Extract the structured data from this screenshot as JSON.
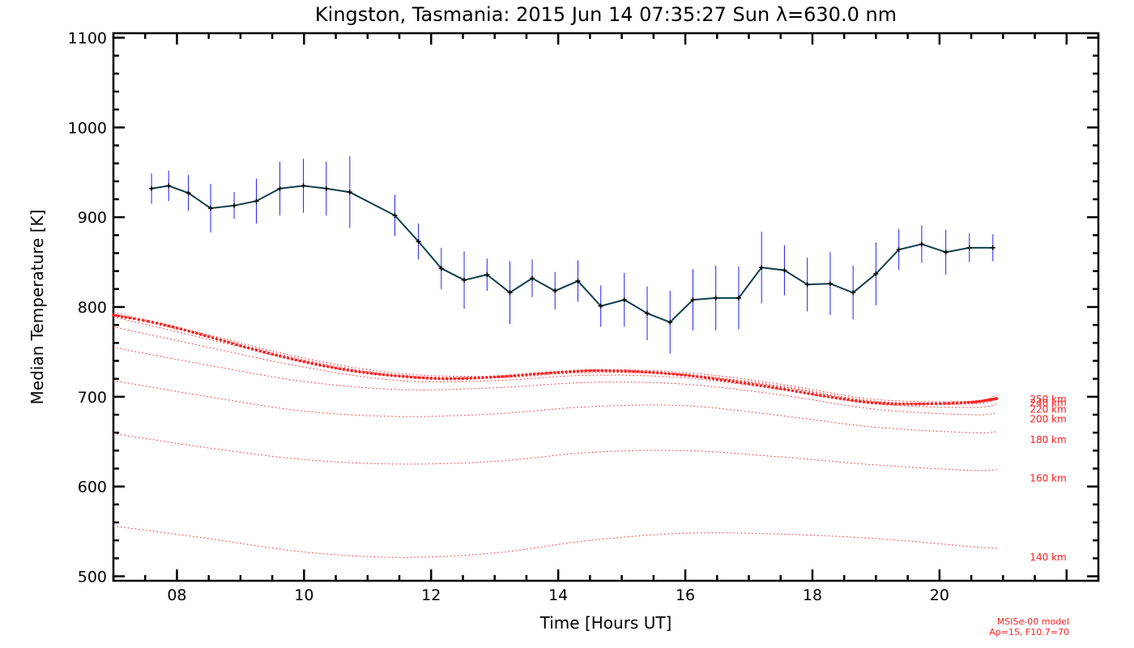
{
  "title": "Kingston, Tasmania: 2015 Jun 14 07:35:27 Sun λ=630.0 nm",
  "xlabel": "Time [Hours UT]",
  "ylabel": "Median Temperature [K]",
  "model_note_line1": "MSISe-00 model",
  "model_note_line2": "Ap=15, F10.7=70",
  "colors": {
    "measurement_line": "#0f3d4d",
    "error_bars": "#2020ff",
    "model": "#ff2020",
    "axes": "#000000"
  },
  "chart_data": {
    "type": "line",
    "title": "Kingston, Tasmania: 2015 Jun 14 07:35:27 Sun λ=630.0 nm",
    "xlabel": "Time [Hours UT]",
    "ylabel": "Median Temperature [K]",
    "xlim": [
      7,
      22.5
    ],
    "ylim": [
      495,
      1105
    ],
    "xticks": [
      8,
      10,
      12,
      14,
      16,
      18,
      20
    ],
    "xtick_labels": [
      "08",
      "10",
      "12",
      "14",
      "16",
      "18",
      "20"
    ],
    "yticks": [
      500,
      600,
      700,
      800,
      900,
      1000,
      1100
    ],
    "ytick_labels": [
      "500",
      "600",
      "700",
      "800",
      "900",
      "1000",
      "1100"
    ],
    "grid": false,
    "series": [
      {
        "kind": "measurement",
        "x": [
          7.6,
          7.87,
          8.18,
          8.53,
          8.9,
          9.25,
          9.62,
          9.99,
          10.35,
          10.72,
          11.43,
          11.8,
          12.16,
          12.52,
          12.88,
          13.24,
          13.59,
          13.95,
          14.31,
          14.67,
          15.04,
          15.4,
          15.76,
          16.12,
          16.48,
          16.84,
          17.2,
          17.56,
          17.92,
          18.28,
          18.64,
          19.0,
          19.36,
          19.72,
          20.1,
          20.47,
          20.84
        ],
        "y": [
          932,
          935,
          927,
          910,
          913,
          918,
          932,
          935,
          932,
          928,
          902,
          873,
          843,
          830,
          836,
          816,
          832,
          818,
          829,
          801,
          808,
          793,
          783,
          808,
          810,
          810,
          844,
          841,
          825,
          826,
          816,
          837,
          864,
          870,
          861,
          866,
          866
        ],
        "err": [
          17,
          17,
          20,
          27,
          15,
          25,
          30,
          30,
          30,
          40,
          23,
          20,
          23,
          32,
          18,
          35,
          21,
          21,
          23,
          23,
          30,
          30,
          35,
          34,
          36,
          35,
          40,
          28,
          30,
          35,
          30,
          35,
          23,
          21,
          25,
          16,
          15
        ]
      }
    ],
    "model_curves": [
      {
        "name": "140 km",
        "x": [
          7,
          8.5,
          10,
          11.5,
          13,
          14.5,
          16,
          17.5,
          19,
          20.5,
          20.9
        ],
        "y": [
          556,
          542,
          527,
          521,
          526,
          540,
          548,
          547,
          542,
          533,
          531
        ]
      },
      {
        "name": "160 km",
        "x": [
          7,
          8.5,
          10,
          11.5,
          13,
          14.5,
          16,
          17.5,
          19,
          20.5,
          20.9
        ],
        "y": [
          659,
          643,
          630,
          625,
          628,
          638,
          640,
          633,
          624,
          618,
          619
        ]
      },
      {
        "name": "180 km",
        "x": [
          7,
          8.5,
          10,
          11.5,
          13,
          14.5,
          16,
          17.5,
          19,
          20.5,
          20.9
        ],
        "y": [
          718,
          700,
          684,
          678,
          681,
          689,
          690,
          679,
          666,
          660,
          661
        ]
      },
      {
        "name": "200 km",
        "x": [
          7,
          8.5,
          10,
          11.5,
          13,
          14.5,
          16,
          17.5,
          19,
          20.5,
          20.9
        ],
        "y": [
          755,
          735,
          717,
          708,
          710,
          716,
          714,
          702,
          686,
          680,
          682
        ]
      },
      {
        "name": "220 km",
        "x": [
          7,
          8.5,
          10,
          11.5,
          13,
          14.5,
          16,
          17.5,
          19,
          20.5,
          20.9
        ],
        "y": [
          778,
          755,
          733,
          718,
          718,
          724,
          721,
          708,
          692,
          688,
          692
        ]
      },
      {
        "name": "240 km",
        "x": [
          7,
          8.5,
          10,
          11.5,
          13,
          14.5,
          16,
          17.5,
          19,
          20.5,
          20.9
        ],
        "y": [
          789,
          764,
          739,
          722,
          721,
          727,
          724,
          711,
          694,
          692,
          697
        ]
      },
      {
        "name": "250 km",
        "x": [
          7,
          8.5,
          10,
          11.5,
          13,
          14.5,
          16,
          17.5,
          19,
          20.5,
          20.9
        ],
        "y": [
          792,
          767,
          741,
          724,
          722,
          729,
          725,
          712,
          695,
          693,
          700
        ]
      },
      {
        "name": "",
        "x": [
          7,
          8.5,
          10,
          11.5,
          13,
          14.5,
          16,
          17.5,
          19,
          20.5,
          20.9
        ],
        "y": [
          794,
          769,
          743,
          726,
          723,
          730,
          727,
          714,
          697,
          695,
          702
        ]
      }
    ],
    "model_highlight": {
      "x": [
        7,
        7.75,
        8.5,
        9.25,
        10,
        10.75,
        11.5,
        12.25,
        13,
        13.75,
        14.5,
        15.25,
        16,
        16.75,
        17.5,
        18.25,
        19,
        19.75,
        20.5,
        20.9
      ],
      "y": [
        791,
        781,
        767,
        752,
        739,
        729,
        723,
        720,
        722,
        726,
        729,
        728,
        724,
        717,
        709,
        700,
        693,
        692,
        694,
        698
      ]
    },
    "model_labels": [
      {
        "text": "250 km",
        "y": 697
      },
      {
        "text": "240 km",
        "y": 693
      },
      {
        "text": "220 km",
        "y": 686
      },
      {
        "text": "200 km",
        "y": 675
      },
      {
        "text": "180 km",
        "y": 652
      },
      {
        "text": "160 km",
        "y": 609
      },
      {
        "text": "140 km",
        "y": 521
      }
    ]
  }
}
